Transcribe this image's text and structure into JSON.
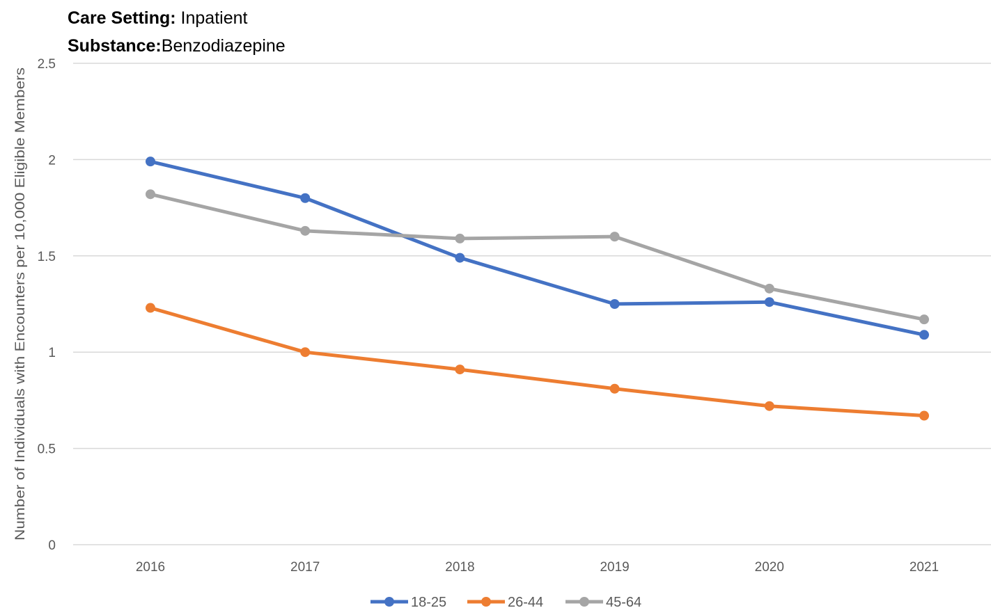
{
  "header": {
    "care_setting_label": "Care Setting:",
    "care_setting_value": "Inpatient",
    "substance_label": "Substance:",
    "substance_value": "Benzodiazepine"
  },
  "chart_data": {
    "type": "line",
    "title": "",
    "xlabel": "",
    "ylabel": "Number of Individuals with Encounters per 10,000 Eligible Members",
    "categories": [
      "2016",
      "2017",
      "2018",
      "2019",
      "2020",
      "2021"
    ],
    "ylim": [
      0,
      2.5
    ],
    "yticks": [
      0,
      0.5,
      1,
      1.5,
      2,
      2.5
    ],
    "ytick_labels": [
      "0",
      "0.5",
      "1",
      "1.5",
      "2",
      "2.5"
    ],
    "grid": true,
    "legend_position": "bottom",
    "series": [
      {
        "name": "18-25",
        "color": "#4472C4",
        "values": [
          1.99,
          1.8,
          1.49,
          1.25,
          1.26,
          1.09
        ]
      },
      {
        "name": "26-44",
        "color": "#ED7D31",
        "values": [
          1.23,
          1.0,
          0.91,
          0.81,
          0.72,
          0.67
        ]
      },
      {
        "name": "45-64",
        "color": "#A5A5A5",
        "values": [
          1.82,
          1.63,
          1.59,
          1.6,
          1.33,
          1.17
        ]
      }
    ]
  }
}
